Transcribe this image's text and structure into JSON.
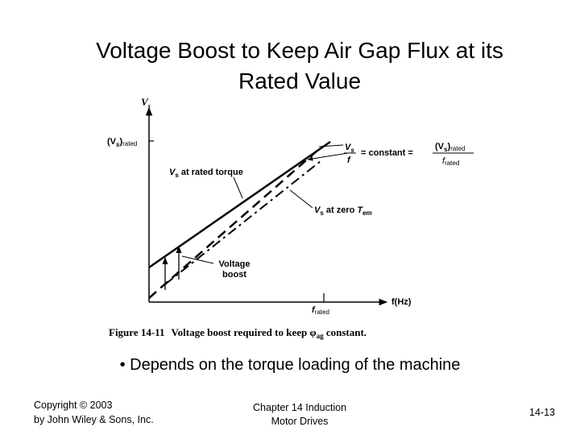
{
  "title": [
    "Voltage Boost to Keep Air Gap Flux at its",
    "Rated Value"
  ],
  "figure": {
    "y_axis_label": {
      "main": "V",
      "sub": "s"
    },
    "x_axis_label": "f(Hz)",
    "vs_rated": {
      "open": "(V",
      "sub": "s",
      "close": ")",
      "tail": "rated"
    },
    "f_rated": {
      "main": "f",
      "sub": "rated"
    },
    "rated_torque_label": {
      "main": "V",
      "sub": "s",
      "rest": " at rated torque"
    },
    "zero_torque_label": {
      "main": "V",
      "sub": "s",
      "rest": " at zero ",
      "t": "T",
      "tsub": "em"
    },
    "boost_label": [
      "Voltage",
      "boost"
    ],
    "ratio_label": {
      "num": "V",
      "numsub": "s",
      "den": "f",
      "eq": "= constant =",
      "rnum": "(V",
      "rnumsub": "s",
      "rnumclose": ")",
      "rnumtail": "rated",
      "rden": "f",
      "rdensub": "rated"
    },
    "caption": {
      "number": "Figure 14-11",
      "text": "Voltage boost required to keep ",
      "phi": "φ",
      "phisub": "ag",
      "end": " constant."
    }
  },
  "bullet": "• Depends on the torque loading of the machine",
  "footer": {
    "left": [
      "Copyright © 2003",
      "by John Wiley & Sons, Inc."
    ],
    "center": [
      "Chapter 14 Induction",
      "Motor Drives"
    ],
    "right": "14-13"
  }
}
